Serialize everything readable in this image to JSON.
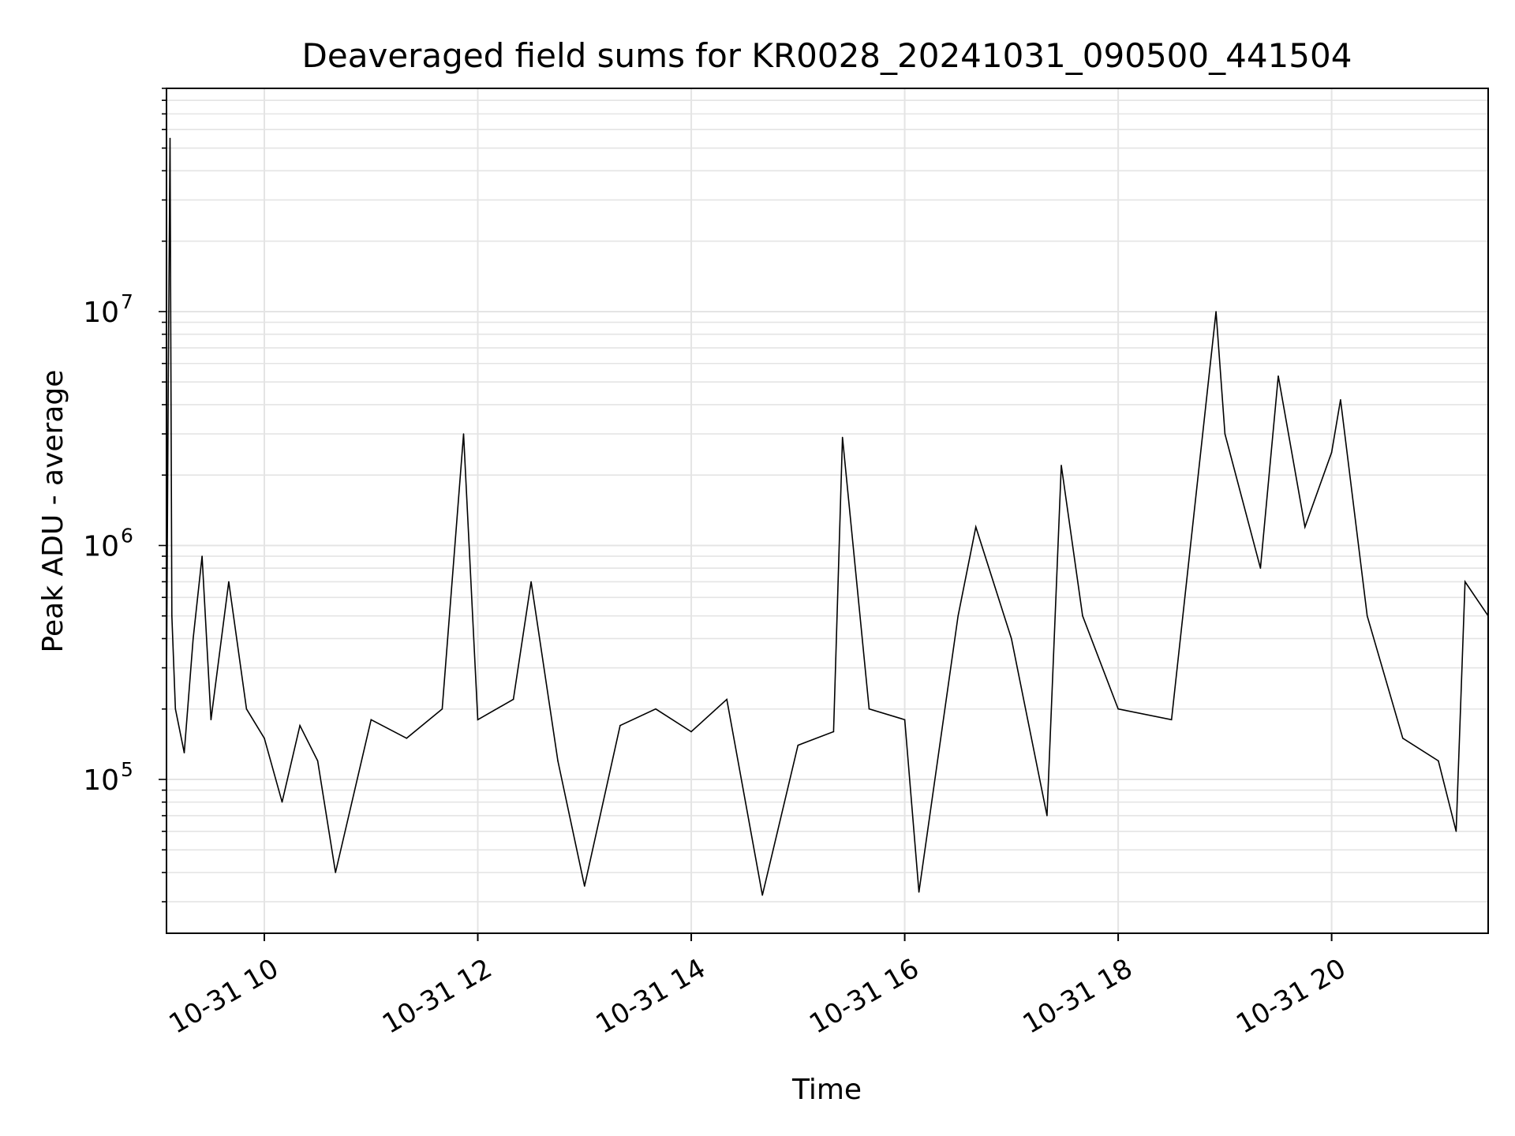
{
  "chart_data": {
    "type": "line",
    "title": "Deaveraged field sums for KR0028_20241031_090500_441504",
    "xlabel": "Time",
    "ylabel": "Peak ADU - average",
    "x_axis": {
      "kind": "datetime",
      "range": [
        "2024-10-31 09:05",
        "2024-10-31 21:28"
      ],
      "ticks": [
        {
          "at": "2024-10-31 10:00",
          "label": "10-31 10"
        },
        {
          "at": "2024-10-31 12:00",
          "label": "10-31 12"
        },
        {
          "at": "2024-10-31 14:00",
          "label": "10-31 14"
        },
        {
          "at": "2024-10-31 16:00",
          "label": "10-31 16"
        },
        {
          "at": "2024-10-31 18:00",
          "label": "10-31 18"
        },
        {
          "at": "2024-10-31 20:00",
          "label": "10-31 20"
        }
      ],
      "tick_rotation": "30deg"
    },
    "y_axis": {
      "scale": "log",
      "range": [
        22000,
        90000000
      ],
      "ticks": [
        {
          "value": 100000,
          "label": "10",
          "exponent": "5"
        },
        {
          "value": 1000000,
          "label": "10",
          "exponent": "6"
        },
        {
          "value": 10000000,
          "label": "10",
          "exponent": "7"
        }
      ]
    },
    "grid": true,
    "legend": "none",
    "series": [
      {
        "color": "#000000",
        "points": [
          [
            "2024-10-31 09:05",
            250000
          ],
          [
            "2024-10-31 09:06",
            5300000
          ],
          [
            "2024-10-31 09:07",
            55000000
          ],
          [
            "2024-10-31 09:08",
            500000
          ],
          [
            "2024-10-31 09:10",
            200000
          ],
          [
            "2024-10-31 09:15",
            130000
          ],
          [
            "2024-10-31 09:20",
            400000
          ],
          [
            "2024-10-31 09:25",
            900000
          ],
          [
            "2024-10-31 09:30",
            180000
          ],
          [
            "2024-10-31 09:40",
            700000
          ],
          [
            "2024-10-31 09:50",
            200000
          ],
          [
            "2024-10-31 10:00",
            150000
          ],
          [
            "2024-10-31 10:10",
            80000
          ],
          [
            "2024-10-31 10:20",
            170000
          ],
          [
            "2024-10-31 10:30",
            120000
          ],
          [
            "2024-10-31 10:40",
            40000
          ],
          [
            "2024-10-31 11:00",
            180000
          ],
          [
            "2024-10-31 11:20",
            150000
          ],
          [
            "2024-10-31 11:40",
            200000
          ],
          [
            "2024-10-31 11:52",
            3000000
          ],
          [
            "2024-10-31 12:00",
            180000
          ],
          [
            "2024-10-31 12:20",
            220000
          ],
          [
            "2024-10-31 12:30",
            700000
          ],
          [
            "2024-10-31 12:45",
            120000
          ],
          [
            "2024-10-31 13:00",
            35000
          ],
          [
            "2024-10-31 13:20",
            170000
          ],
          [
            "2024-10-31 13:40",
            200000
          ],
          [
            "2024-10-31 14:00",
            160000
          ],
          [
            "2024-10-31 14:20",
            220000
          ],
          [
            "2024-10-31 14:40",
            32000
          ],
          [
            "2024-10-31 15:00",
            140000
          ],
          [
            "2024-10-31 15:20",
            160000
          ],
          [
            "2024-10-31 15:25",
            2900000
          ],
          [
            "2024-10-31 15:40",
            200000
          ],
          [
            "2024-10-31 16:00",
            180000
          ],
          [
            "2024-10-31 16:08",
            33000
          ],
          [
            "2024-10-31 16:30",
            500000
          ],
          [
            "2024-10-31 16:40",
            1200000
          ],
          [
            "2024-10-31 17:00",
            400000
          ],
          [
            "2024-10-31 17:20",
            70000
          ],
          [
            "2024-10-31 17:28",
            2200000
          ],
          [
            "2024-10-31 17:40",
            500000
          ],
          [
            "2024-10-31 18:00",
            200000
          ],
          [
            "2024-10-31 18:30",
            180000
          ],
          [
            "2024-10-31 18:55",
            10000000
          ],
          [
            "2024-10-31 19:00",
            3000000
          ],
          [
            "2024-10-31 19:20",
            800000
          ],
          [
            "2024-10-31 19:30",
            5300000
          ],
          [
            "2024-10-31 19:45",
            1200000
          ],
          [
            "2024-10-31 20:00",
            2500000
          ],
          [
            "2024-10-31 20:05",
            4200000
          ],
          [
            "2024-10-31 20:20",
            500000
          ],
          [
            "2024-10-31 20:40",
            150000
          ],
          [
            "2024-10-31 21:00",
            120000
          ],
          [
            "2024-10-31 21:10",
            60000
          ],
          [
            "2024-10-31 21:15",
            700000
          ],
          [
            "2024-10-31 21:28",
            500000
          ]
        ]
      }
    ]
  }
}
